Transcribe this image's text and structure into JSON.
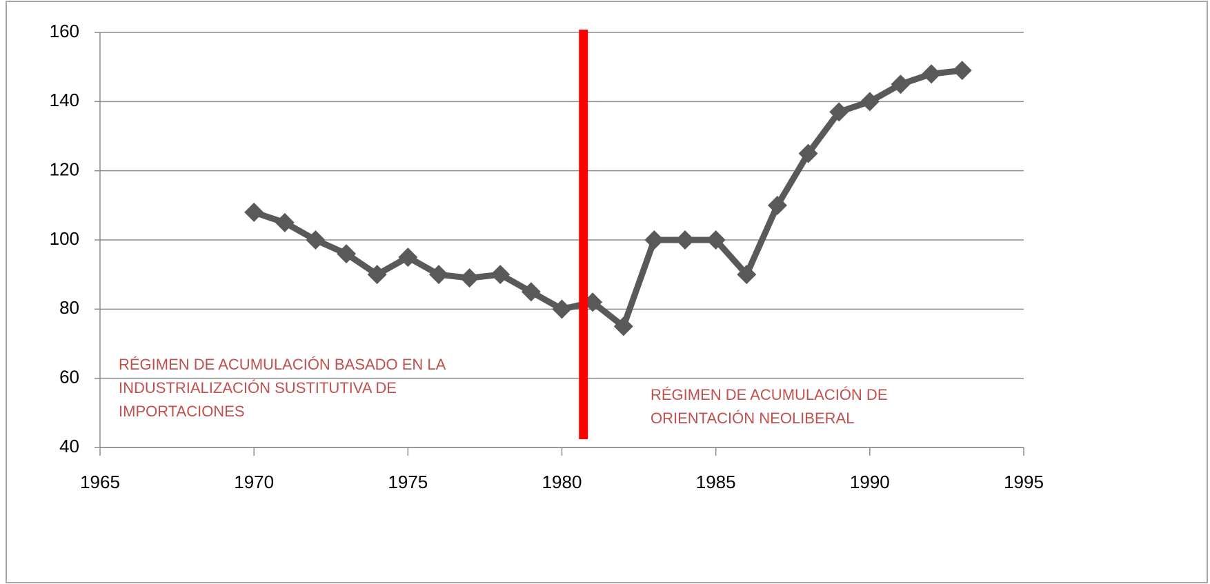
{
  "chart_data": {
    "type": "line",
    "x": [
      1970,
      1971,
      1972,
      1973,
      1974,
      1975,
      1976,
      1977,
      1978,
      1979,
      1980,
      1981,
      1982,
      1983,
      1984,
      1985,
      1986,
      1987,
      1988,
      1989,
      1990,
      1991,
      1992,
      1993
    ],
    "values": [
      108,
      105,
      100,
      96,
      90,
      95,
      90,
      89,
      90,
      85,
      80,
      82,
      75,
      100,
      100,
      100,
      90,
      110,
      125,
      137,
      140,
      145,
      148,
      149
    ],
    "color": "#595959",
    "marker": "diamond",
    "xlim": [
      1965,
      1995
    ],
    "xticks": [
      1965,
      1970,
      1975,
      1980,
      1985,
      1990,
      1995
    ],
    "ylim": [
      40,
      160
    ],
    "yticks": [
      40,
      60,
      80,
      100,
      120,
      140,
      160
    ],
    "grid": true,
    "vline": {
      "x": 1980.7,
      "color": "#ff0000"
    },
    "annotations": [
      {
        "lines": [
          "RÉGIMEN DE ACUMULACIÓN BASADO EN LA",
          "INDUSTRIALIZACIÓN SUSTITUTIVA DE",
          "IMPORTACIONES"
        ],
        "color": "#c0504d"
      },
      {
        "lines": [
          "RÉGIMEN DE ACUMULACIÓN DE",
          "ORIENTACIÓN NEOLIBERAL"
        ],
        "color": "#c0504d"
      }
    ]
  }
}
